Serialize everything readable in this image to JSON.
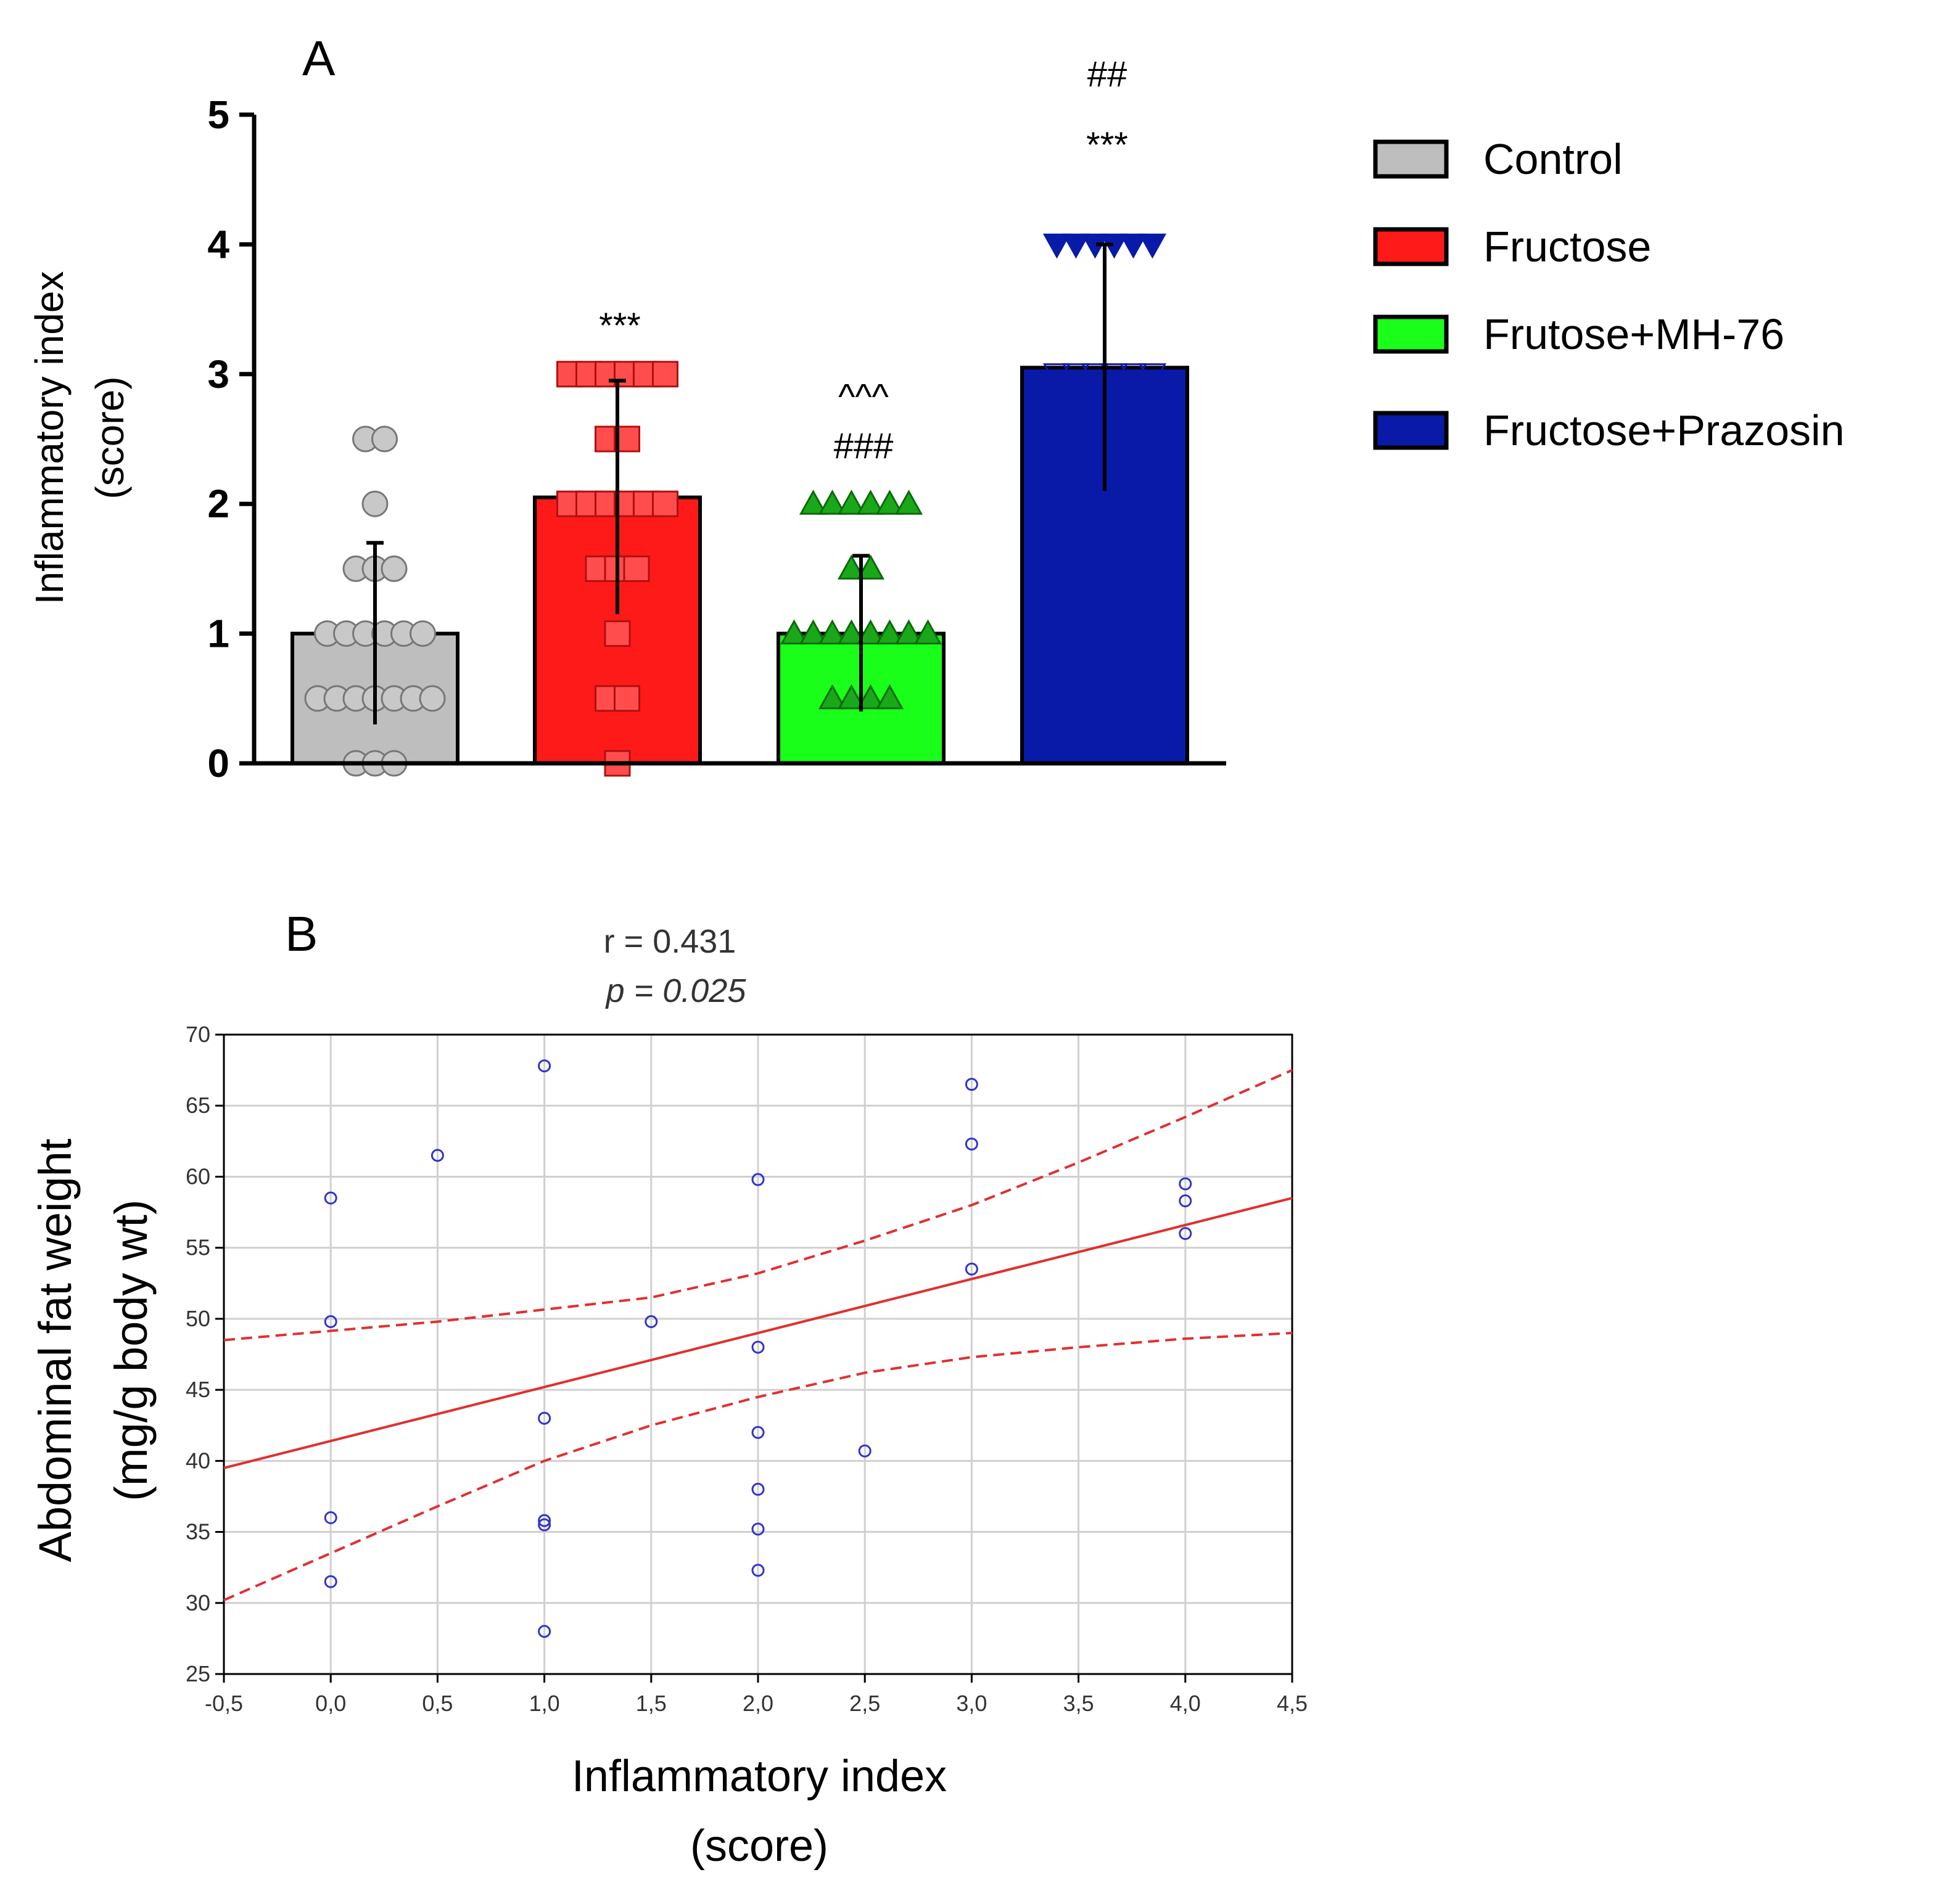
{
  "chart_data": [
    {
      "panel": "A",
      "type": "bar",
      "ylabel_lines": [
        "Inflammatory index",
        "(score)"
      ],
      "ylim": [
        0,
        5
      ],
      "yticks": [
        0,
        1,
        2,
        3,
        4,
        5
      ],
      "categories": [
        "Control",
        "Fructose",
        "Frutose+MH-76",
        "Fructose+Prazosin"
      ],
      "means": [
        1.0,
        2.05,
        1.0,
        3.05
      ],
      "sd": [
        0.7,
        0.9,
        0.6,
        0.95
      ],
      "colors": [
        "#bebebe",
        "#ff1a1a",
        "#1aff1a",
        "#0a1aa8"
      ],
      "marker_colors": [
        "#c8c8c8",
        "#ff4d4d",
        "#1aa81a",
        "#0a1aa8"
      ],
      "markers": [
        "circle",
        "square",
        "triangle-up",
        "triangle-down"
      ],
      "annotations": [
        {
          "series": 1,
          "lines": [
            "***"
          ]
        },
        {
          "series": 2,
          "lines": [
            "^^^",
            "###"
          ]
        },
        {
          "series": 3,
          "lines": [
            "##",
            "***"
          ]
        }
      ],
      "points": [
        [
          0,
          0,
          0,
          0.5,
          0.5,
          0.5,
          0.5,
          0.5,
          0.5,
          0.5,
          1,
          1,
          1,
          1,
          1,
          1,
          1.5,
          1.5,
          1.5,
          2,
          2.5,
          2.5
        ],
        [
          0,
          0.5,
          0.5,
          1,
          1.5,
          1.5,
          1.5,
          2,
          2,
          2,
          2,
          2,
          2,
          2.5,
          2.5,
          3,
          3,
          3,
          3,
          3,
          3
        ],
        [
          0.5,
          0.5,
          0.5,
          0.5,
          1,
          1,
          1,
          1,
          1,
          1,
          1,
          1,
          1.5,
          1.5,
          2,
          2,
          2,
          2,
          2,
          2
        ],
        [
          1,
          1.5,
          1.5,
          2,
          2,
          2,
          2,
          2,
          2.5,
          2.5,
          3,
          3,
          3,
          3,
          3,
          3,
          4,
          4,
          4,
          4,
          4,
          4
        ]
      ],
      "legend": {
        "placement": "right",
        "entries": [
          "Control",
          "Fructose",
          "Frutose+MH-76",
          "Fructose+Prazosin"
        ]
      }
    },
    {
      "panel": "B",
      "type": "scatter",
      "stat_r": "r = 0.431",
      "stat_p": "p = 0.025",
      "xlabel_lines": [
        "Inflammatory index",
        "(score)"
      ],
      "ylabel_lines": [
        "Abdominal fat weight",
        "(mg/g body wt)"
      ],
      "xlim": [
        -0.5,
        4.5
      ],
      "ylim": [
        25,
        70
      ],
      "xtick_labels": [
        "-0,5",
        "0,0",
        "0,5",
        "1,0",
        "1,5",
        "2,0",
        "2,5",
        "3,0",
        "3,5",
        "4,0",
        "4,5"
      ],
      "ytick_labels": [
        "25",
        "30",
        "35",
        "40",
        "45",
        "50",
        "55",
        "60",
        "65",
        "70"
      ],
      "grid": true,
      "point_color": "#3333cc",
      "fit_color": "#e03030",
      "points": [
        {
          "x": 0,
          "y": 58.5
        },
        {
          "x": 0,
          "y": 49.8
        },
        {
          "x": 0,
          "y": 36
        },
        {
          "x": 0,
          "y": 31.5
        },
        {
          "x": 0.5,
          "y": 61.5
        },
        {
          "x": 1,
          "y": 67.8
        },
        {
          "x": 1,
          "y": 43
        },
        {
          "x": 1,
          "y": 35.8
        },
        {
          "x": 1,
          "y": 35.5
        },
        {
          "x": 1,
          "y": 28
        },
        {
          "x": 1.5,
          "y": 49.8
        },
        {
          "x": 2,
          "y": 59.8
        },
        {
          "x": 2,
          "y": 48
        },
        {
          "x": 2,
          "y": 42
        },
        {
          "x": 2,
          "y": 38
        },
        {
          "x": 2,
          "y": 35.2
        },
        {
          "x": 2,
          "y": 32.3
        },
        {
          "x": 2.5,
          "y": 40.7
        },
        {
          "x": 3,
          "y": 66.5
        },
        {
          "x": 3,
          "y": 62.3
        },
        {
          "x": 3,
          "y": 53.5
        },
        {
          "x": 4,
          "y": 59.5
        },
        {
          "x": 4,
          "y": 58.3
        },
        {
          "x": 4,
          "y": 56
        }
      ],
      "fit_line": [
        {
          "x": -0.5,
          "y": 39.5
        },
        {
          "x": 4.5,
          "y": 58.5
        }
      ],
      "ci_upper": [
        {
          "x": -0.5,
          "y": 48.5
        },
        {
          "x": 0.5,
          "y": 49.8
        },
        {
          "x": 1.5,
          "y": 51.5
        },
        {
          "x": 2,
          "y": 53.2
        },
        {
          "x": 2.5,
          "y": 55.5
        },
        {
          "x": 3,
          "y": 58
        },
        {
          "x": 3.5,
          "y": 61
        },
        {
          "x": 4,
          "y": 64.2
        },
        {
          "x": 4.5,
          "y": 67.5
        }
      ],
      "ci_lower": [
        {
          "x": -0.5,
          "y": 30.2
        },
        {
          "x": 0,
          "y": 33.5
        },
        {
          "x": 0.5,
          "y": 36.8
        },
        {
          "x": 1,
          "y": 40
        },
        {
          "x": 1.5,
          "y": 42.5
        },
        {
          "x": 2,
          "y": 44.5
        },
        {
          "x": 2.5,
          "y": 46.2
        },
        {
          "x": 3,
          "y": 47.3
        },
        {
          "x": 3.5,
          "y": 48
        },
        {
          "x": 4,
          "y": 48.6
        },
        {
          "x": 4.5,
          "y": 49
        }
      ]
    }
  ],
  "panel_labels": {
    "a": "A",
    "b": "B"
  }
}
